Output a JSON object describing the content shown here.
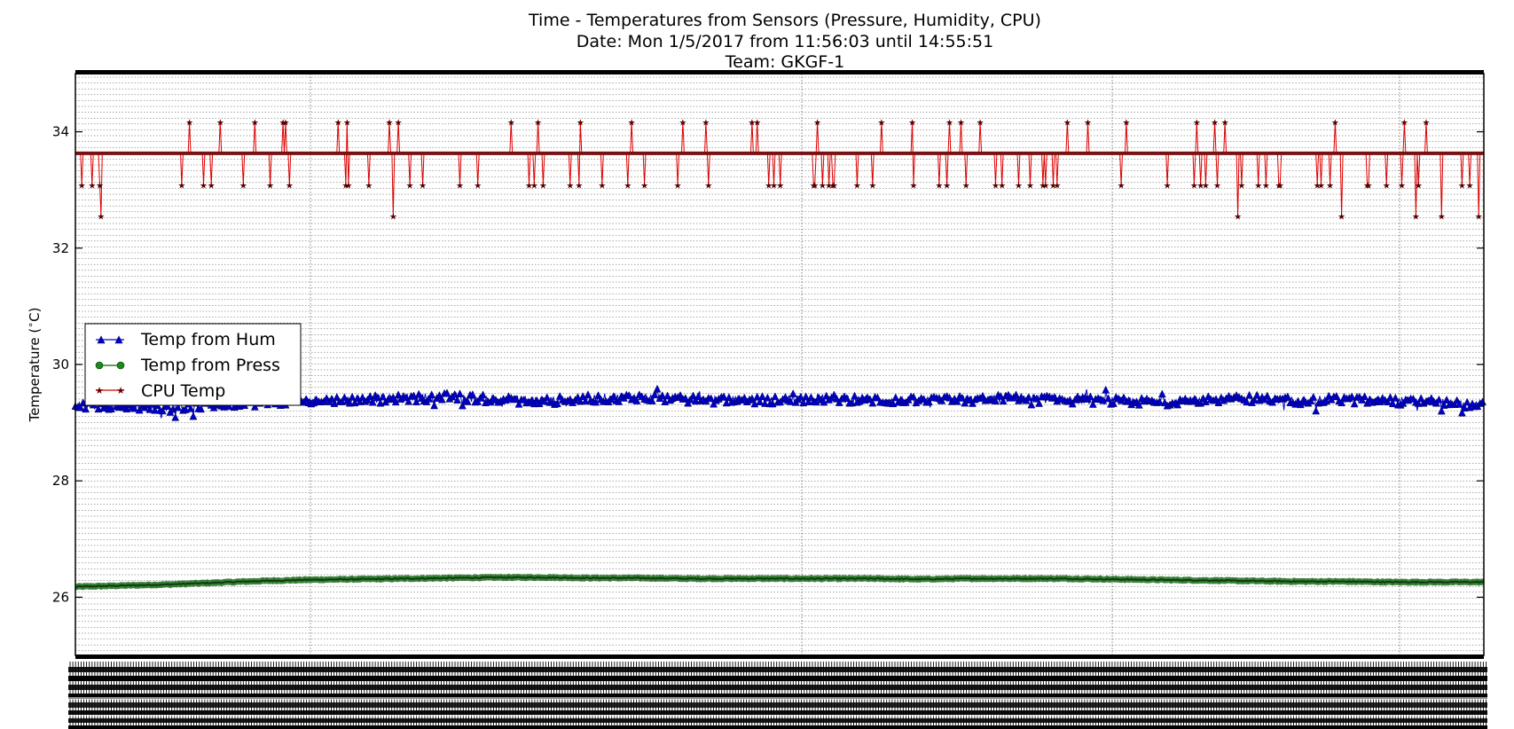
{
  "chart_data": {
    "type": "line",
    "title_lines": [
      "Time - Temperatures from Sensors (Pressure, Humidity, CPU)",
      "Date: Mon 1/5/2017 from 11:56:03 until 14:55:51",
      "Team: GKGF-1"
    ],
    "xlabel": "",
    "ylabel": "Temperature ($^\\circ$C)",
    "x_start": "11:56:03",
    "x_end": "14:55:51",
    "ylim": [
      25,
      35
    ],
    "y_ticks": [
      26,
      28,
      30,
      32,
      34
    ],
    "grid": true,
    "legend_position": "center-left",
    "series": [
      {
        "name": "Temp from Hum",
        "color": "#0000cc",
        "marker": "triangle",
        "typical_value": 29.38,
        "values_sampled": [
          29.28,
          29.3,
          29.25,
          29.32,
          29.35,
          29.38,
          29.4,
          29.42,
          29.45,
          29.4,
          29.38,
          29.42,
          29.45,
          29.4,
          29.38,
          29.4,
          29.42,
          29.4,
          29.38,
          29.4,
          29.42,
          29.4,
          29.38,
          29.35,
          29.4,
          29.42,
          29.38,
          29.4,
          29.38,
          29.35,
          29.3
        ]
      },
      {
        "name": "Temp from Press",
        "color": "#006400",
        "marker": "circle",
        "values_sampled": [
          26.18,
          26.2,
          26.22,
          26.25,
          26.28,
          26.3,
          26.31,
          26.32,
          26.33,
          26.34,
          26.34,
          26.33,
          26.33,
          26.32,
          26.32,
          26.32,
          26.32,
          26.32,
          26.31,
          26.32,
          26.32,
          26.32,
          26.31,
          26.3,
          26.29,
          26.28,
          26.27,
          26.27,
          26.26,
          26.26,
          26.26
        ]
      },
      {
        "name": "CPU Temp",
        "color": "#cc0000",
        "marker": "star",
        "baseline": 33.63,
        "discrete_levels": [
          32.55,
          33.09,
          33.63,
          34.17
        ]
      }
    ]
  }
}
